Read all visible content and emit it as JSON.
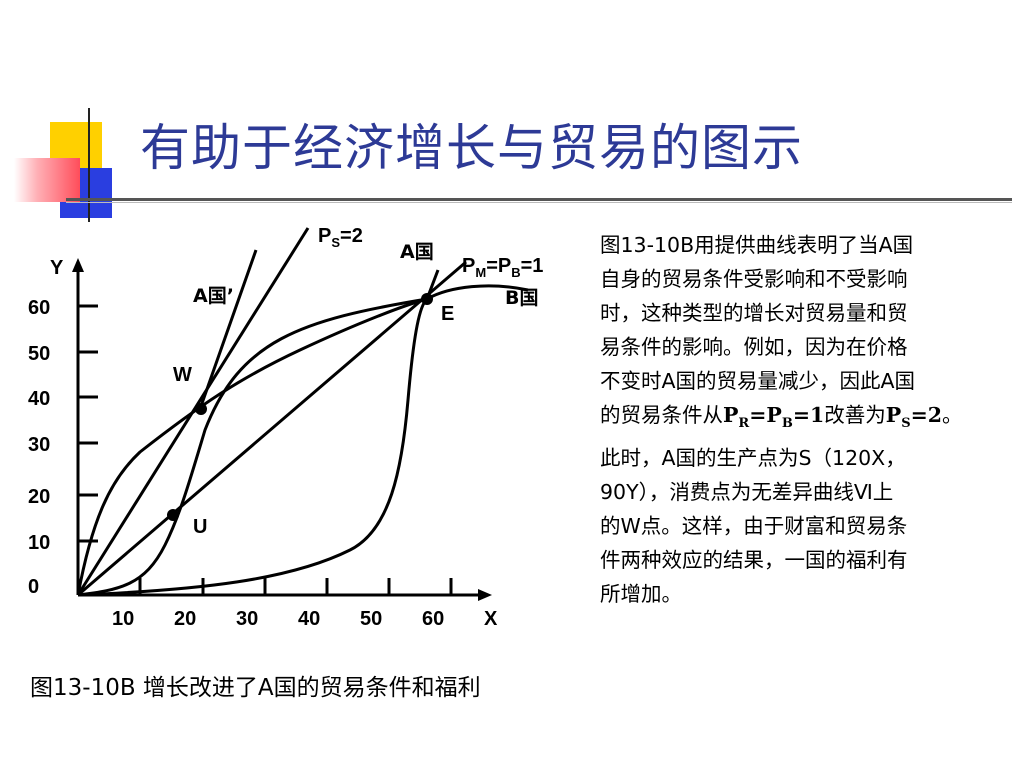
{
  "title": "有助于经济增长与贸易的图示",
  "colors": {
    "title": "#2d3a96",
    "deco_yellow": "#ffd000",
    "deco_blue": "#2a3ee0",
    "deco_red": "#ff4d5a"
  },
  "chart_data": {
    "type": "diagram",
    "x_axis_label": "X",
    "y_axis_label": "Y",
    "x_ticks": [
      "10",
      "20",
      "30",
      "40",
      "50",
      "60"
    ],
    "y_ticks": [
      "0",
      "10",
      "20",
      "30",
      "40",
      "50",
      "60"
    ],
    "ray_ps_label": "P",
    "ray_ps_sub": "S",
    "ray_ps_value": "=2",
    "ray_pm_label_p1": "P",
    "ray_pm_sub1": "M",
    "ray_pm_mid": "=P",
    "ray_pm_sub2": "B",
    "ray_pm_value": "=1",
    "curve_a_label": "A国",
    "curve_a_prime_label": "A国’",
    "curve_b_label": "B国",
    "points": [
      {
        "label": "E",
        "x": 56,
        "y": 64
      },
      {
        "label": "W",
        "x": 20,
        "y": 40
      },
      {
        "label": "U",
        "x": 16,
        "y": 17
      }
    ]
  },
  "caption": "图13-10B 增长改进了A国的贸易条件和福利",
  "description": {
    "line1": "图13-10B用提供曲线表明了当A国",
    "line2": "自身的贸易条件受影响和不受影响",
    "line3": "时，这种类型的增长对贸易量和贸",
    "line4": "易条件的影响。例如，因为在价格",
    "line5": "不变时A国的贸易量减少，因此A国",
    "line6_prefix": "的贸易条件从",
    "line6_pr": "P",
    "line6_pr_sub": "R",
    "line6_eq1": "=P",
    "line6_pb_sub": "B",
    "line6_eq1_val": "=1",
    "line6_mid": "改善为",
    "line6_ps": "P",
    "line6_ps_sub": "S",
    "line6_ps_val": "=2",
    "line6_end": "。",
    "line7": "此时，A国的生产点为S（120X，",
    "line8": "90Y），消费点为无差异曲线Ⅵ上",
    "line9": "的W点。这样，由于财富和贸易条",
    "line10": "件两种效应的结果，一国的福利有",
    "line11": "所增加。"
  }
}
